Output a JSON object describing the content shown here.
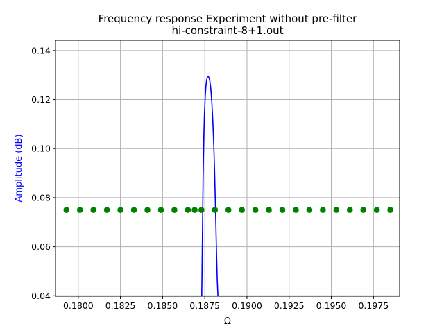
{
  "chart_data": {
    "type": "line",
    "title": "Frequency response Experiment without pre-filter",
    "subtitle": "hi-constraint-8+1.out",
    "xlabel": "Ω",
    "ylabel": "Amplitude (dB)",
    "xlim": [
      0.17865,
      0.19905
    ],
    "ylim": [
      0.0398,
      0.1442
    ],
    "grid": true,
    "x_ticks": [
      0.18,
      0.1825,
      0.185,
      0.1875,
      0.19,
      0.1925,
      0.195,
      0.1975
    ],
    "x_tick_labels": [
      "0.1800",
      "0.1825",
      "0.1850",
      "0.1875",
      "0.1900",
      "0.1925",
      "0.1950",
      "0.1975"
    ],
    "y_ticks": [
      0.04,
      0.06,
      0.08,
      0.1,
      0.12,
      0.14
    ],
    "y_tick_labels": [
      "0.04",
      "0.06",
      "0.08",
      "0.10",
      "0.12",
      "0.14"
    ],
    "colors": {
      "line": "#0000ff",
      "markers": "#008000",
      "ylabel": "#0000ff",
      "grid": "#b0b0b0"
    },
    "series": [
      {
        "style": "line",
        "x": [
          0.18732,
          0.18736,
          0.1874,
          0.18744,
          0.18748,
          0.18752,
          0.18756,
          0.1876,
          0.18764,
          0.18768,
          0.18772,
          0.18776,
          0.1878,
          0.18784,
          0.18788,
          0.18792,
          0.18796,
          0.188,
          0.18804,
          0.18808,
          0.18812,
          0.18816,
          0.1882,
          0.18824,
          0.18828
        ],
        "y": [
          0.0398,
          0.064,
          0.088,
          0.104,
          0.114,
          0.1205,
          0.125,
          0.1275,
          0.129,
          0.1295,
          0.1293,
          0.1287,
          0.1275,
          0.1255,
          0.1225,
          0.1185,
          0.1135,
          0.1075,
          0.1,
          0.091,
          0.08,
          0.068,
          0.056,
          0.046,
          0.0398
        ]
      },
      {
        "style": "scatter",
        "x": [
          0.1793,
          0.1801,
          0.1809,
          0.1817,
          0.1825,
          0.1833,
          0.1841,
          0.1849,
          0.1857,
          0.1865,
          0.1869,
          0.1873,
          0.1881,
          0.1889,
          0.1897,
          0.1905,
          0.1913,
          0.1921,
          0.1929,
          0.1937,
          0.1945,
          0.1953,
          0.1961,
          0.1969,
          0.1977,
          0.1985
        ],
        "y": [
          0.075,
          0.075,
          0.075,
          0.075,
          0.075,
          0.075,
          0.075,
          0.075,
          0.075,
          0.075,
          0.075,
          0.075,
          0.075,
          0.075,
          0.075,
          0.075,
          0.075,
          0.075,
          0.075,
          0.075,
          0.075,
          0.075,
          0.075,
          0.075,
          0.075,
          0.075
        ]
      }
    ]
  }
}
